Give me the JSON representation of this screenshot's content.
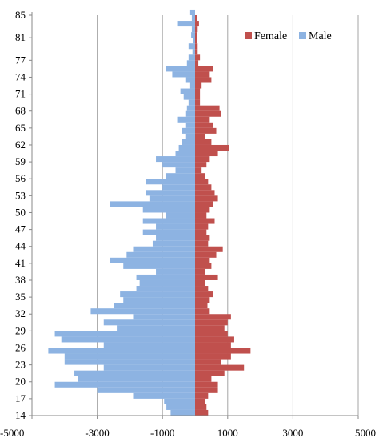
{
  "chart_data": {
    "type": "bar",
    "orientation": "horizontal",
    "stacking": "diverging",
    "y_min": 14,
    "y_max": 85,
    "y_ticks": [
      "14",
      "17",
      "20",
      "23",
      "26",
      "29",
      "32",
      "35",
      "38",
      "41",
      "44",
      "47",
      "50",
      "53",
      "56",
      "59",
      "62",
      "65",
      "68",
      "71",
      "74",
      "77",
      "81",
      "85"
    ],
    "x_ticks": [
      "-5000",
      "-3000",
      "-1000",
      "1000",
      "3000",
      "5000"
    ],
    "xlim": [
      -5000,
      5000
    ],
    "grid": "vertical",
    "legend_position": "top-right",
    "series": [
      {
        "name": "Female",
        "color": "#c0504d",
        "values": [
          400,
          350,
          300,
          400,
          700,
          700,
          500,
          900,
          1500,
          800,
          1100,
          1700,
          1100,
          1200,
          1000,
          900,
          1000,
          1100,
          450,
          380,
          450,
          550,
          400,
          300,
          700,
          300,
          500,
          450,
          650,
          850,
          400,
          450,
          350,
          400,
          600,
          350,
          450,
          550,
          700,
          600,
          500,
          400,
          300,
          200,
          350,
          450,
          700,
          1050,
          500,
          300,
          650,
          550,
          450,
          800,
          750,
          150,
          150,
          150,
          200,
          500,
          450,
          550,
          100,
          150,
          80,
          80,
          50,
          50,
          80,
          120,
          50,
          0
        ]
      },
      {
        "name": "Male",
        "color": "#8db3e2",
        "values": [
          -750,
          -880,
          -950,
          -1900,
          -3000,
          -4300,
          -3600,
          -3700,
          -2800,
          -4000,
          -4000,
          -4500,
          -2800,
          -4100,
          -4300,
          -2400,
          -2800,
          -1900,
          -3200,
          -2500,
          -2200,
          -2300,
          -1800,
          -1700,
          -1800,
          -1200,
          -2200,
          -2600,
          -2100,
          -1900,
          -1300,
          -1200,
          -1600,
          -1200,
          -1600,
          -900,
          -1600,
          -2600,
          -1400,
          -1500,
          -1000,
          -1500,
          -900,
          -600,
          -1000,
          -1200,
          -600,
          -500,
          -400,
          -300,
          -400,
          -300,
          -550,
          -300,
          -250,
          -200,
          -350,
          -450,
          -150,
          -300,
          -700,
          -900,
          -250,
          -200,
          -80,
          -200,
          -50,
          -120,
          -100,
          -550,
          -100,
          -150
        ]
      }
    ]
  }
}
